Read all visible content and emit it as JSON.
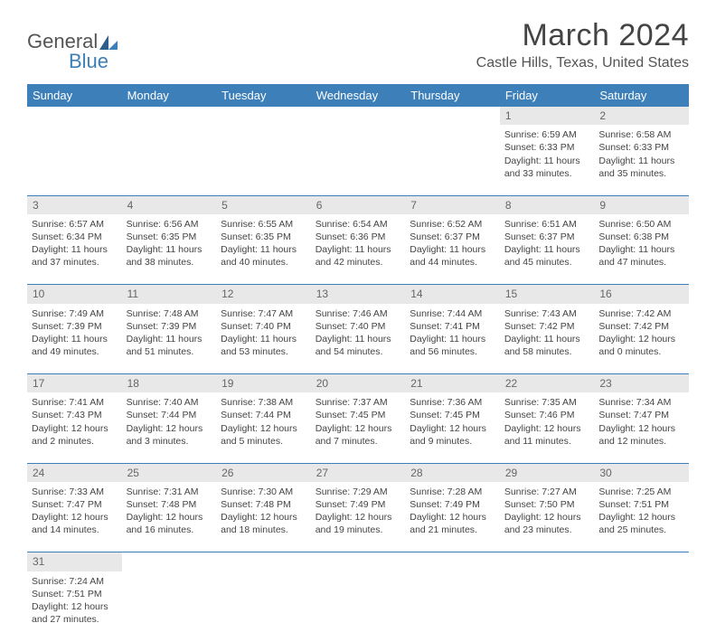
{
  "logo": {
    "text_general": "General",
    "text_blue": "Blue"
  },
  "header": {
    "month_title": "March 2024",
    "location": "Castle Hills, Texas, United States"
  },
  "colors": {
    "header_bg": "#3d7fb8",
    "header_text": "#ffffff",
    "daynum_bg": "#e8e8e8",
    "border": "#3d7fb8",
    "page_bg": "#ffffff"
  },
  "typography": {
    "title_fontsize_pt": 26,
    "location_fontsize_pt": 12,
    "dayheader_fontsize_pt": 10,
    "cell_fontsize_pt": 8
  },
  "day_headers": [
    "Sunday",
    "Monday",
    "Tuesday",
    "Wednesday",
    "Thursday",
    "Friday",
    "Saturday"
  ],
  "weeks": [
    [
      null,
      null,
      null,
      null,
      null,
      {
        "n": "1",
        "sunrise": "Sunrise: 6:59 AM",
        "sunset": "Sunset: 6:33 PM",
        "dl1": "Daylight: 11 hours",
        "dl2": "and 33 minutes."
      },
      {
        "n": "2",
        "sunrise": "Sunrise: 6:58 AM",
        "sunset": "Sunset: 6:33 PM",
        "dl1": "Daylight: 11 hours",
        "dl2": "and 35 minutes."
      }
    ],
    [
      {
        "n": "3",
        "sunrise": "Sunrise: 6:57 AM",
        "sunset": "Sunset: 6:34 PM",
        "dl1": "Daylight: 11 hours",
        "dl2": "and 37 minutes."
      },
      {
        "n": "4",
        "sunrise": "Sunrise: 6:56 AM",
        "sunset": "Sunset: 6:35 PM",
        "dl1": "Daylight: 11 hours",
        "dl2": "and 38 minutes."
      },
      {
        "n": "5",
        "sunrise": "Sunrise: 6:55 AM",
        "sunset": "Sunset: 6:35 PM",
        "dl1": "Daylight: 11 hours",
        "dl2": "and 40 minutes."
      },
      {
        "n": "6",
        "sunrise": "Sunrise: 6:54 AM",
        "sunset": "Sunset: 6:36 PM",
        "dl1": "Daylight: 11 hours",
        "dl2": "and 42 minutes."
      },
      {
        "n": "7",
        "sunrise": "Sunrise: 6:52 AM",
        "sunset": "Sunset: 6:37 PM",
        "dl1": "Daylight: 11 hours",
        "dl2": "and 44 minutes."
      },
      {
        "n": "8",
        "sunrise": "Sunrise: 6:51 AM",
        "sunset": "Sunset: 6:37 PM",
        "dl1": "Daylight: 11 hours",
        "dl2": "and 45 minutes."
      },
      {
        "n": "9",
        "sunrise": "Sunrise: 6:50 AM",
        "sunset": "Sunset: 6:38 PM",
        "dl1": "Daylight: 11 hours",
        "dl2": "and 47 minutes."
      }
    ],
    [
      {
        "n": "10",
        "sunrise": "Sunrise: 7:49 AM",
        "sunset": "Sunset: 7:39 PM",
        "dl1": "Daylight: 11 hours",
        "dl2": "and 49 minutes."
      },
      {
        "n": "11",
        "sunrise": "Sunrise: 7:48 AM",
        "sunset": "Sunset: 7:39 PM",
        "dl1": "Daylight: 11 hours",
        "dl2": "and 51 minutes."
      },
      {
        "n": "12",
        "sunrise": "Sunrise: 7:47 AM",
        "sunset": "Sunset: 7:40 PM",
        "dl1": "Daylight: 11 hours",
        "dl2": "and 53 minutes."
      },
      {
        "n": "13",
        "sunrise": "Sunrise: 7:46 AM",
        "sunset": "Sunset: 7:40 PM",
        "dl1": "Daylight: 11 hours",
        "dl2": "and 54 minutes."
      },
      {
        "n": "14",
        "sunrise": "Sunrise: 7:44 AM",
        "sunset": "Sunset: 7:41 PM",
        "dl1": "Daylight: 11 hours",
        "dl2": "and 56 minutes."
      },
      {
        "n": "15",
        "sunrise": "Sunrise: 7:43 AM",
        "sunset": "Sunset: 7:42 PM",
        "dl1": "Daylight: 11 hours",
        "dl2": "and 58 minutes."
      },
      {
        "n": "16",
        "sunrise": "Sunrise: 7:42 AM",
        "sunset": "Sunset: 7:42 PM",
        "dl1": "Daylight: 12 hours",
        "dl2": "and 0 minutes."
      }
    ],
    [
      {
        "n": "17",
        "sunrise": "Sunrise: 7:41 AM",
        "sunset": "Sunset: 7:43 PM",
        "dl1": "Daylight: 12 hours",
        "dl2": "and 2 minutes."
      },
      {
        "n": "18",
        "sunrise": "Sunrise: 7:40 AM",
        "sunset": "Sunset: 7:44 PM",
        "dl1": "Daylight: 12 hours",
        "dl2": "and 3 minutes."
      },
      {
        "n": "19",
        "sunrise": "Sunrise: 7:38 AM",
        "sunset": "Sunset: 7:44 PM",
        "dl1": "Daylight: 12 hours",
        "dl2": "and 5 minutes."
      },
      {
        "n": "20",
        "sunrise": "Sunrise: 7:37 AM",
        "sunset": "Sunset: 7:45 PM",
        "dl1": "Daylight: 12 hours",
        "dl2": "and 7 minutes."
      },
      {
        "n": "21",
        "sunrise": "Sunrise: 7:36 AM",
        "sunset": "Sunset: 7:45 PM",
        "dl1": "Daylight: 12 hours",
        "dl2": "and 9 minutes."
      },
      {
        "n": "22",
        "sunrise": "Sunrise: 7:35 AM",
        "sunset": "Sunset: 7:46 PM",
        "dl1": "Daylight: 12 hours",
        "dl2": "and 11 minutes."
      },
      {
        "n": "23",
        "sunrise": "Sunrise: 7:34 AM",
        "sunset": "Sunset: 7:47 PM",
        "dl1": "Daylight: 12 hours",
        "dl2": "and 12 minutes."
      }
    ],
    [
      {
        "n": "24",
        "sunrise": "Sunrise: 7:33 AM",
        "sunset": "Sunset: 7:47 PM",
        "dl1": "Daylight: 12 hours",
        "dl2": "and 14 minutes."
      },
      {
        "n": "25",
        "sunrise": "Sunrise: 7:31 AM",
        "sunset": "Sunset: 7:48 PM",
        "dl1": "Daylight: 12 hours",
        "dl2": "and 16 minutes."
      },
      {
        "n": "26",
        "sunrise": "Sunrise: 7:30 AM",
        "sunset": "Sunset: 7:48 PM",
        "dl1": "Daylight: 12 hours",
        "dl2": "and 18 minutes."
      },
      {
        "n": "27",
        "sunrise": "Sunrise: 7:29 AM",
        "sunset": "Sunset: 7:49 PM",
        "dl1": "Daylight: 12 hours",
        "dl2": "and 19 minutes."
      },
      {
        "n": "28",
        "sunrise": "Sunrise: 7:28 AM",
        "sunset": "Sunset: 7:49 PM",
        "dl1": "Daylight: 12 hours",
        "dl2": "and 21 minutes."
      },
      {
        "n": "29",
        "sunrise": "Sunrise: 7:27 AM",
        "sunset": "Sunset: 7:50 PM",
        "dl1": "Daylight: 12 hours",
        "dl2": "and 23 minutes."
      },
      {
        "n": "30",
        "sunrise": "Sunrise: 7:25 AM",
        "sunset": "Sunset: 7:51 PM",
        "dl1": "Daylight: 12 hours",
        "dl2": "and 25 minutes."
      }
    ],
    [
      {
        "n": "31",
        "sunrise": "Sunrise: 7:24 AM",
        "sunset": "Sunset: 7:51 PM",
        "dl1": "Daylight: 12 hours",
        "dl2": "and 27 minutes."
      },
      null,
      null,
      null,
      null,
      null,
      null
    ]
  ]
}
